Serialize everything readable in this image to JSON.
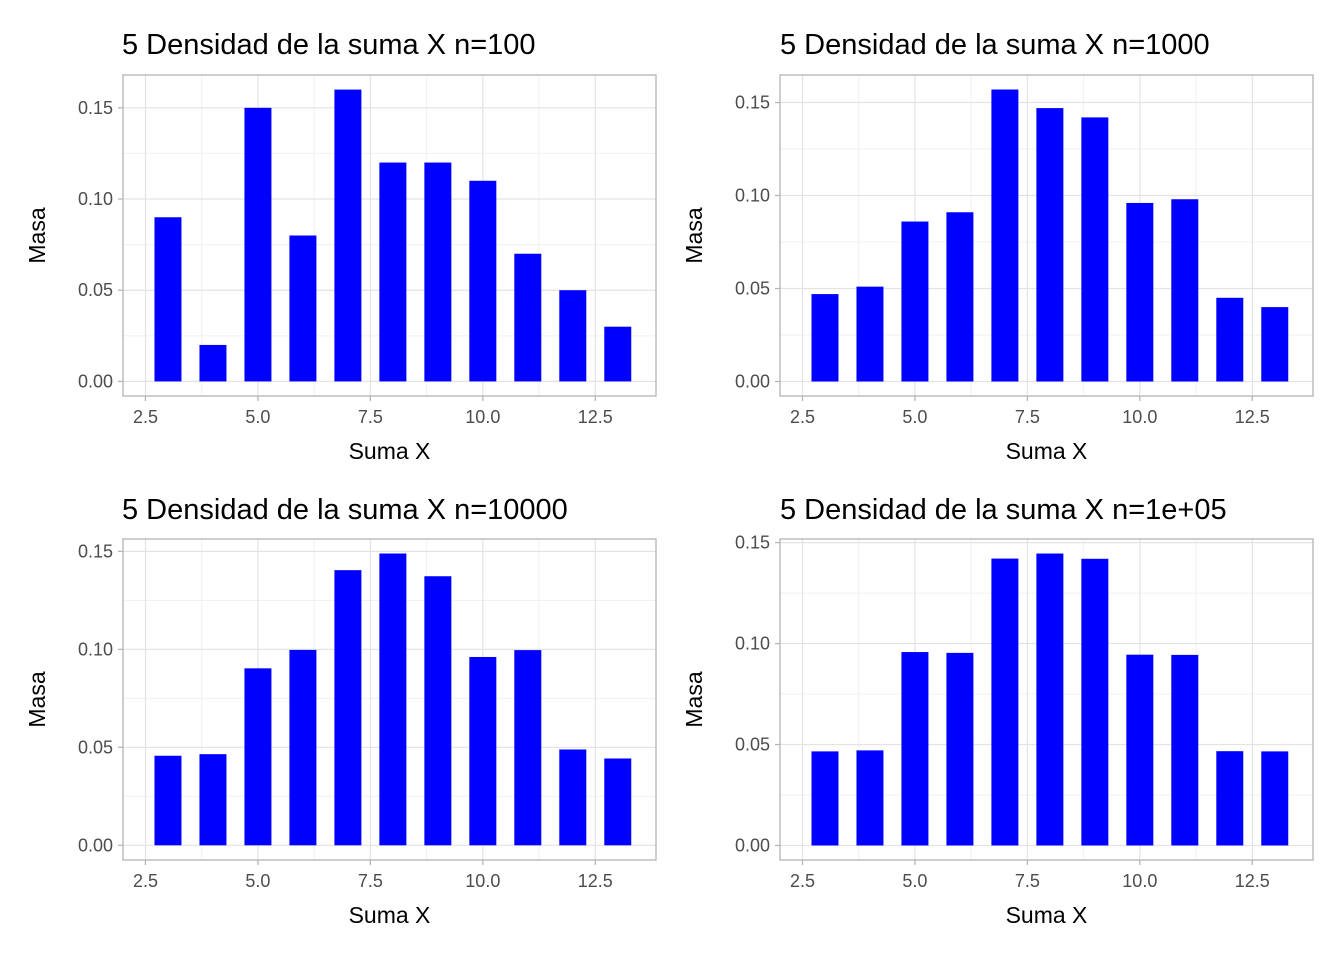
{
  "chart_data": [
    {
      "type": "bar",
      "title": "5 Densidad de la suma X n=100",
      "xlabel": "Suma X",
      "ylabel": "Masa",
      "x": [
        3,
        4,
        5,
        6,
        7,
        8,
        9,
        10,
        11,
        12,
        13
      ],
      "values": [
        0.09,
        0.02,
        0.15,
        0.08,
        0.16,
        0.12,
        0.12,
        0.11,
        0.07,
        0.05,
        0.03
      ],
      "xticks": [
        "2.5",
        "5.0",
        "7.5",
        "10.0",
        "12.5"
      ],
      "yticks": [
        "0.00",
        "0.05",
        "0.10",
        "0.15"
      ],
      "xlim": [
        2.0,
        13.85
      ],
      "ylim": [
        -0.008,
        0.168
      ],
      "grid": true,
      "bar_color": "#0000FF"
    },
    {
      "type": "bar",
      "title": "5 Densidad de la suma X n=1000",
      "xlabel": "Suma X",
      "ylabel": "Masa",
      "x": [
        3,
        4,
        5,
        6,
        7,
        8,
        9,
        10,
        11,
        12,
        13
      ],
      "values": [
        0.047,
        0.051,
        0.086,
        0.091,
        0.157,
        0.147,
        0.142,
        0.096,
        0.098,
        0.045,
        0.04
      ],
      "xticks": [
        "2.5",
        "5.0",
        "7.5",
        "10.0",
        "12.5"
      ],
      "yticks": [
        "0.00",
        "0.05",
        "0.10",
        "0.15"
      ],
      "xlim": [
        2.0,
        13.85
      ],
      "ylim": [
        -0.0078,
        0.1648
      ],
      "grid": true,
      "bar_color": "#0000FF"
    },
    {
      "type": "bar",
      "title": "5 Densidad de la suma X n=10000",
      "xlabel": "Suma X",
      "ylabel": "Masa",
      "x": [
        3,
        4,
        5,
        6,
        7,
        8,
        9,
        10,
        11,
        12,
        13
      ],
      "values": [
        0.0457,
        0.0465,
        0.0903,
        0.0997,
        0.1404,
        0.1489,
        0.1373,
        0.0961,
        0.0996,
        0.0489,
        0.0443
      ],
      "xticks": [
        "2.5",
        "5.0",
        "7.5",
        "10.0",
        "12.5"
      ],
      "yticks": [
        "0.00",
        "0.05",
        "0.10",
        "0.15"
      ],
      "xlim": [
        2.0,
        13.85
      ],
      "ylim": [
        -0.0075,
        0.1563
      ],
      "grid": true,
      "bar_color": "#0000FF"
    },
    {
      "type": "bar",
      "title": "5 Densidad de la suma X n=1e+05",
      "xlabel": "Suma X",
      "ylabel": "Masa",
      "x": [
        3,
        4,
        5,
        6,
        7,
        8,
        9,
        10,
        11,
        12,
        13
      ],
      "values": [
        0.0466,
        0.0471,
        0.0958,
        0.0954,
        0.1421,
        0.1446,
        0.142,
        0.0945,
        0.0944,
        0.0467,
        0.0466
      ],
      "xticks": [
        "2.5",
        "5.0",
        "7.5",
        "10.0",
        "12.5"
      ],
      "yticks": [
        "0.00",
        "0.05",
        "0.10",
        "0.15"
      ],
      "xlim": [
        2.0,
        13.85
      ],
      "ylim": [
        -0.0072,
        0.1518
      ],
      "grid": true,
      "bar_color": "#0000FF"
    }
  ]
}
